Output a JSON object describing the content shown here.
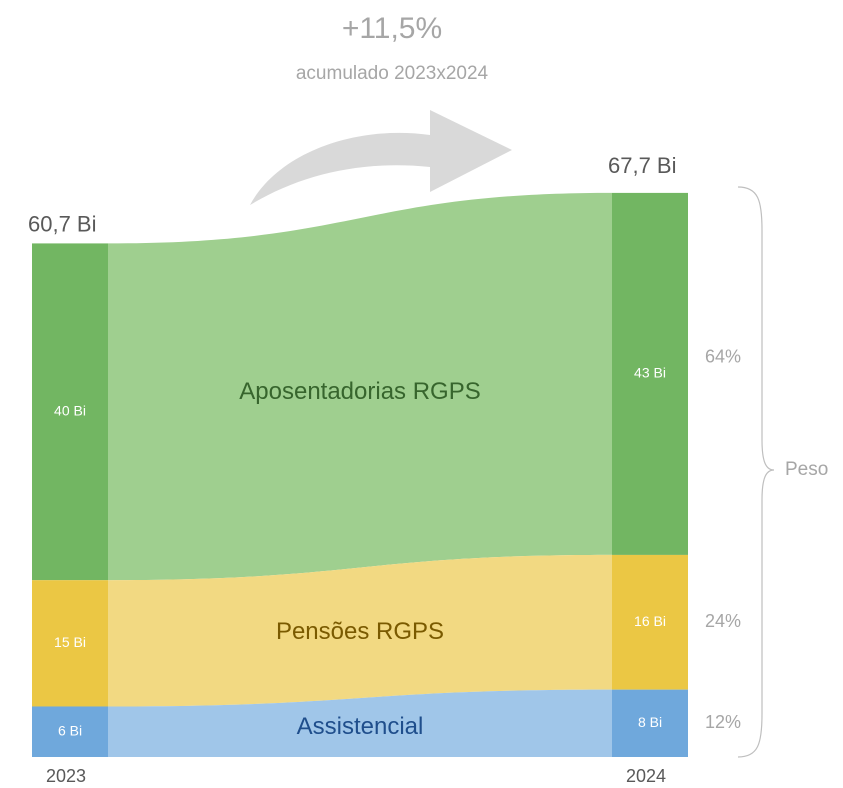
{
  "chart_data": {
    "type": "sankey-stack",
    "growth": {
      "value": 11.5,
      "label": "+11,5%"
    },
    "growth_note": "acumulado 2023x2024",
    "categories": [
      "2023",
      "2024"
    ],
    "totals": [
      60.7,
      67.7
    ],
    "total_labels": [
      "60,7 Bi",
      "67,7 Bi"
    ],
    "series": [
      {
        "name": "Aposentadorias RGPS",
        "color": "#72b662",
        "flow_color": "#9fcf8f",
        "text_color": "#37652d",
        "values": [
          40,
          43
        ],
        "value_labels": [
          "40 Bi",
          "43 Bi"
        ]
      },
      {
        "name": "Pensões RGPS",
        "color": "#ebc744",
        "flow_color": "#f2d982",
        "text_color": "#7a5a00",
        "values": [
          15,
          16
        ],
        "value_labels": [
          "15 Bi",
          "16 Bi"
        ]
      },
      {
        "name": "Assistencial",
        "color": "#6fa8dc",
        "flow_color": "#a0c6e9",
        "text_color": "#1f4e8c",
        "values": [
          6,
          8
        ],
        "value_labels": [
          "6 Bi",
          "8 Bi"
        ]
      }
    ],
    "shares": {
      "values": [
        64,
        24,
        12
      ],
      "value_labels": [
        "64%",
        "24%",
        "12%"
      ]
    },
    "brace_label": "Peso"
  }
}
